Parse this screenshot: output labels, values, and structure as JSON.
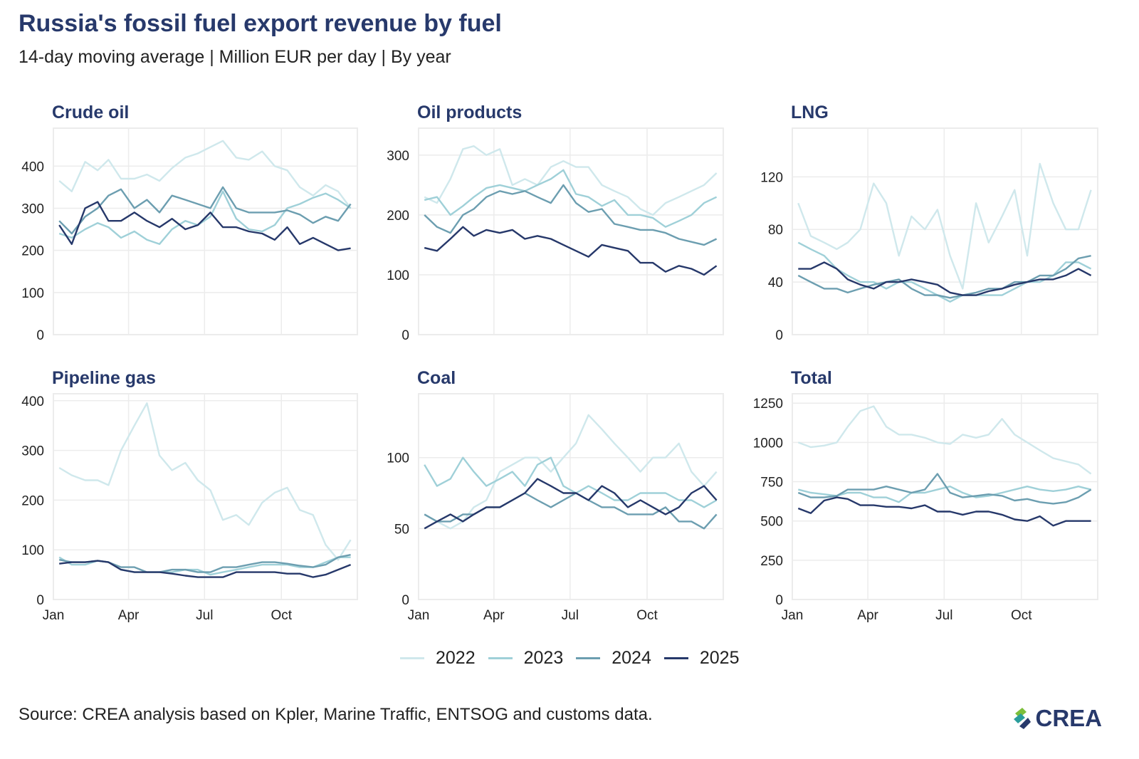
{
  "title": "Russia's fossil fuel export revenue by fuel",
  "subtitle": "14-day moving average | Million EUR per day | By year",
  "source": "Source: CREA analysis based on Kpler, Marine Traffic, ENTSOG and customs data.",
  "logo_text": "CREA",
  "colors": {
    "2022": "#cfe8ec",
    "2023": "#9fd0d8",
    "2024": "#6c9eb0",
    "2025": "#26386a",
    "title": "#27396b"
  },
  "legend": [
    "2022",
    "2023",
    "2024",
    "2025"
  ],
  "chart_data": {
    "type": "line",
    "x_ticks": [
      "Jan",
      "Apr",
      "Jul",
      "Oct"
    ],
    "x": [
      "Jan 1",
      "Jan 16",
      "Feb 1",
      "Feb 16",
      "Mar 1",
      "Mar 16",
      "Apr 1",
      "Apr 16",
      "May 1",
      "May 16",
      "Jun 1",
      "Jun 16",
      "Jul 1",
      "Jul 16",
      "Aug 1",
      "Aug 16",
      "Sep 1",
      "Sep 16",
      "Oct 1",
      "Oct 16",
      "Nov 1",
      "Nov 16",
      "Dec 1",
      "Dec 16"
    ],
    "grid": true,
    "legend_position": "bottom",
    "panels": [
      {
        "title": "Crude oil",
        "yticks": [
          0,
          100,
          200,
          300,
          400
        ],
        "ylim": [
          0,
          490
        ],
        "series": [
          {
            "name": "2022",
            "values": [
              365,
              340,
              410,
              390,
              415,
              370,
              370,
              380,
              365,
              395,
              420,
              430,
              445,
              460,
              420,
              415,
              435,
              400,
              390,
              350,
              330,
              355,
              340,
              300
            ]
          },
          {
            "name": "2023",
            "values": [
              240,
              230,
              250,
              265,
              255,
              230,
              245,
              225,
              215,
              250,
              270,
              260,
              280,
              340,
              275,
              250,
              245,
              260,
              300,
              310,
              325,
              335,
              320,
              300
            ]
          },
          {
            "name": "2024",
            "values": [
              270,
              240,
              280,
              300,
              330,
              345,
              300,
              320,
              290,
              330,
              320,
              310,
              300,
              350,
              300,
              290,
              290,
              290,
              295,
              285,
              265,
              280,
              270,
              310
            ]
          },
          {
            "name": "2025",
            "values": [
              260,
              215,
              300,
              315,
              270,
              270,
              290,
              270,
              255,
              275,
              250,
              260,
              290,
              255,
              255,
              245,
              240,
              225,
              255,
              215,
              230,
              215,
              200,
              205
            ]
          }
        ]
      },
      {
        "title": "Oil products",
        "yticks": [
          0,
          100,
          200,
          300
        ],
        "ylim": [
          0,
          345
        ],
        "series": [
          {
            "name": "2022",
            "values": [
              230,
              220,
              260,
              310,
              315,
              300,
              310,
              250,
              260,
              250,
              280,
              290,
              280,
              280,
              250,
              240,
              230,
              210,
              200,
              220,
              230,
              240,
              250,
              270
            ]
          },
          {
            "name": "2023",
            "values": [
              225,
              230,
              200,
              215,
              230,
              245,
              250,
              245,
              240,
              250,
              260,
              275,
              235,
              230,
              215,
              225,
              200,
              200,
              195,
              180,
              190,
              200,
              220,
              230
            ]
          },
          {
            "name": "2024",
            "values": [
              200,
              180,
              170,
              200,
              210,
              230,
              240,
              235,
              240,
              230,
              220,
              250,
              220,
              205,
              210,
              185,
              180,
              175,
              175,
              170,
              160,
              155,
              150,
              160
            ]
          },
          {
            "name": "2025",
            "values": [
              145,
              140,
              160,
              180,
              165,
              175,
              170,
              175,
              160,
              165,
              160,
              150,
              140,
              130,
              150,
              145,
              140,
              120,
              120,
              105,
              115,
              110,
              100,
              115
            ]
          }
        ]
      },
      {
        "title": "LNG",
        "yticks": [
          0,
          40,
          80,
          120
        ],
        "ylim": [
          0,
          157
        ],
        "series": [
          {
            "name": "2022",
            "values": [
              100,
              75,
              70,
              65,
              70,
              80,
              115,
              100,
              60,
              90,
              80,
              95,
              60,
              35,
              100,
              70,
              90,
              110,
              60,
              130,
              100,
              80,
              80,
              110
            ]
          },
          {
            "name": "2023",
            "values": [
              70,
              65,
              60,
              50,
              45,
              40,
              40,
              35,
              40,
              40,
              35,
              30,
              25,
              30,
              30,
              30,
              30,
              35,
              40,
              40,
              45,
              55,
              55,
              50
            ]
          },
          {
            "name": "2024",
            "values": [
              45,
              40,
              35,
              35,
              32,
              35,
              38,
              40,
              42,
              35,
              30,
              30,
              28,
              30,
              32,
              35,
              35,
              40,
              40,
              45,
              45,
              50,
              58,
              60
            ]
          },
          {
            "name": "2025",
            "values": [
              50,
              50,
              55,
              50,
              42,
              38,
              35,
              40,
              40,
              42,
              40,
              38,
              32,
              30,
              30,
              33,
              35,
              38,
              40,
              42,
              42,
              45,
              50,
              45
            ]
          }
        ]
      },
      {
        "title": "Pipeline gas",
        "yticks": [
          0,
          100,
          200,
          300,
          400
        ],
        "ylim": [
          0,
          414
        ],
        "series": [
          {
            "name": "2022",
            "values": [
              265,
              250,
              240,
              240,
              230,
              300,
              350,
              395,
              290,
              260,
              275,
              240,
              220,
              160,
              170,
              150,
              195,
              215,
              225,
              180,
              170,
              110,
              80,
              120
            ]
          },
          {
            "name": "2023",
            "values": [
              85,
              70,
              70,
              78,
              75,
              60,
              55,
              55,
              55,
              55,
              60,
              60,
              50,
              55,
              60,
              65,
              70,
              70,
              70,
              65,
              65,
              75,
              85,
              85
            ]
          },
          {
            "name": "2024",
            "values": [
              80,
              75,
              75,
              78,
              75,
              65,
              65,
              55,
              55,
              60,
              60,
              55,
              55,
              65,
              65,
              70,
              75,
              75,
              72,
              68,
              65,
              70,
              85,
              90
            ]
          },
          {
            "name": "2025",
            "values": [
              72,
              75,
              75,
              78,
              75,
              60,
              55,
              55,
              55,
              52,
              48,
              45,
              45,
              45,
              55,
              55,
              55,
              55,
              52,
              52,
              45,
              50,
              60,
              70
            ]
          }
        ]
      },
      {
        "title": "Coal",
        "yticks": [
          0,
          50,
          100
        ],
        "ylim": [
          0,
          145
        ],
        "series": [
          {
            "name": "2022",
            "values": [
              60,
              55,
              50,
              55,
              65,
              70,
              90,
              95,
              100,
              100,
              90,
              100,
              110,
              130,
              120,
              110,
              100,
              90,
              100,
              100,
              110,
              90,
              80,
              90
            ]
          },
          {
            "name": "2023",
            "values": [
              95,
              80,
              85,
              100,
              90,
              80,
              85,
              90,
              80,
              95,
              100,
              80,
              75,
              80,
              75,
              70,
              70,
              75,
              75,
              75,
              70,
              70,
              65,
              70
            ]
          },
          {
            "name": "2024",
            "values": [
              60,
              55,
              55,
              60,
              60,
              65,
              65,
              70,
              75,
              70,
              65,
              70,
              75,
              70,
              65,
              65,
              60,
              60,
              60,
              65,
              55,
              55,
              50,
              60
            ]
          },
          {
            "name": "2025",
            "values": [
              50,
              55,
              60,
              55,
              60,
              65,
              65,
              70,
              75,
              85,
              80,
              75,
              75,
              70,
              80,
              75,
              65,
              70,
              65,
              60,
              65,
              75,
              80,
              70
            ]
          }
        ]
      },
      {
        "title": "Total",
        "yticks": [
          0,
          250,
          500,
          750,
          1000,
          1250
        ],
        "ylim": [
          0,
          1310
        ],
        "series": [
          {
            "name": "2022",
            "values": [
              1000,
              970,
              980,
              1000,
              1100,
              1200,
              1230,
              1100,
              1050,
              1050,
              1030,
              1000,
              990,
              1050,
              1030,
              1050,
              1150,
              1050,
              1000,
              950,
              900,
              880,
              860,
              800
            ]
          },
          {
            "name": "2023",
            "values": [
              700,
              680,
              670,
              660,
              680,
              680,
              650,
              650,
              620,
              680,
              680,
              700,
              720,
              680,
              650,
              660,
              680,
              700,
              720,
              700,
              690,
              700,
              720,
              700
            ]
          },
          {
            "name": "2024",
            "values": [
              680,
              650,
              650,
              660,
              700,
              700,
              700,
              720,
              700,
              680,
              700,
              800,
              680,
              650,
              660,
              670,
              660,
              630,
              640,
              620,
              610,
              620,
              650,
              700
            ]
          },
          {
            "name": "2025",
            "values": [
              580,
              550,
              630,
              650,
              640,
              600,
              600,
              590,
              590,
              580,
              600,
              560,
              560,
              540,
              560,
              560,
              540,
              510,
              500,
              530,
              470,
              500,
              500,
              500
            ]
          }
        ]
      }
    ]
  }
}
